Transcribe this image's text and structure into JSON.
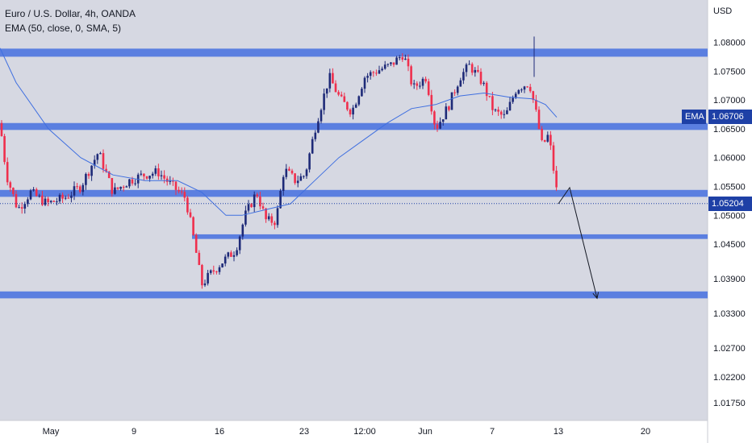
{
  "legend": {
    "symbol": "Euro / U.S. Dollar, 4h, OANDA",
    "indicator": "EMA (50, close, 0, SMA, 5)"
  },
  "axis_unit": "USD",
  "tags": {
    "ema_label": "EMA",
    "ema_value": "1.06706",
    "price_value": "1.05204"
  },
  "colors": {
    "background": "#d6d8e2",
    "axis_bg": "#ffffff",
    "zone": "#5b7fe0",
    "bull": "#1e2a78",
    "bear": "#ef2f4d",
    "ema_line": "#3f6fe0",
    "tag_bg": "#1e40a6",
    "arrow": "#131722"
  },
  "chart_data": {
    "type": "candlestick",
    "title": "Euro / U.S. Dollar, 4h, OANDA",
    "indicator": "EMA (50, close, 0, SMA, 5)",
    "ylim": [
      1.0133,
      1.0838
    ],
    "y_ticks": [
      "1.08000",
      "1.07500",
      "1.07000",
      "1.06500",
      "1.06000",
      "1.05500",
      "1.05000",
      "1.04500",
      "1.03900",
      "1.03300",
      "1.02700",
      "1.02200",
      "1.01750"
    ],
    "x_ticks": [
      "May",
      "9",
      "16",
      "23",
      "12:00",
      "Jun",
      "7",
      "13",
      "20"
    ],
    "last_price": 1.05204,
    "ema_value": 1.06706,
    "close_path": [
      [
        0,
        1.066
      ],
      [
        8,
        1.057
      ],
      [
        22,
        1.051
      ],
      [
        38,
        1.054
      ],
      [
        58,
        1.052
      ],
      [
        80,
        1.053
      ],
      [
        100,
        1.055
      ],
      [
        122,
        1.061
      ],
      [
        140,
        1.054
      ],
      [
        160,
        1.056
      ],
      [
        178,
        1.057
      ],
      [
        196,
        1.0575
      ],
      [
        214,
        1.055
      ],
      [
        230,
        1.053
      ],
      [
        240,
        1.046
      ],
      [
        250,
        1.038
      ],
      [
        262,
        1.04
      ],
      [
        276,
        1.042
      ],
      [
        292,
        1.044
      ],
      [
        304,
        1.05
      ],
      [
        318,
        1.054
      ],
      [
        330,
        1.049
      ],
      [
        342,
        1.049
      ],
      [
        352,
        1.058
      ],
      [
        366,
        1.056
      ],
      [
        378,
        1.057
      ],
      [
        392,
        1.066
      ],
      [
        408,
        1.074
      ],
      [
        422,
        1.07
      ],
      [
        436,
        1.068
      ],
      [
        452,
        1.074
      ],
      [
        466,
        1.075
      ],
      [
        484,
        1.076
      ],
      [
        500,
        1.078
      ],
      [
        512,
        1.072
      ],
      [
        528,
        1.074
      ],
      [
        540,
        1.065
      ],
      [
        556,
        1.069
      ],
      [
        570,
        1.074
      ],
      [
        582,
        1.076
      ],
      [
        598,
        1.073
      ],
      [
        612,
        1.068
      ],
      [
        626,
        1.067
      ],
      [
        640,
        1.072
      ],
      [
        656,
        1.073
      ],
      [
        664,
        1.068
      ],
      [
        672,
        1.062
      ],
      [
        680,
        1.064
      ],
      [
        686,
        1.058
      ],
      [
        692,
        1.052
      ]
    ],
    "ema_path": [
      [
        0,
        1.079
      ],
      [
        20,
        1.073
      ],
      [
        60,
        1.065
      ],
      [
        100,
        1.06
      ],
      [
        140,
        1.057
      ],
      [
        180,
        1.056
      ],
      [
        220,
        1.056
      ],
      [
        250,
        1.054
      ],
      [
        280,
        1.05
      ],
      [
        300,
        1.05
      ],
      [
        330,
        1.051
      ],
      [
        360,
        1.052
      ],
      [
        390,
        1.056
      ],
      [
        420,
        1.06
      ],
      [
        450,
        1.063
      ],
      [
        480,
        1.066
      ],
      [
        510,
        1.0685
      ],
      [
        540,
        1.0692
      ],
      [
        570,
        1.0707
      ],
      [
        600,
        1.0712
      ],
      [
        630,
        1.0705
      ],
      [
        660,
        1.0702
      ],
      [
        676,
        1.0692
      ],
      [
        690,
        1.067
      ]
    ],
    "zones": [
      {
        "price": 1.0782,
        "half_height": 0.0007
      },
      {
        "price": 1.0654,
        "half_height": 0.0006
      },
      {
        "price": 1.0538,
        "half_height": 0.0006
      },
      {
        "price": 1.0463,
        "half_height": 0.0004
      },
      {
        "price": 1.0362,
        "half_height": 0.0006
      }
    ],
    "projection": [
      [
        692,
        1.052
      ],
      [
        706,
        1.0548
      ],
      [
        740,
        1.0356
      ]
    ]
  }
}
